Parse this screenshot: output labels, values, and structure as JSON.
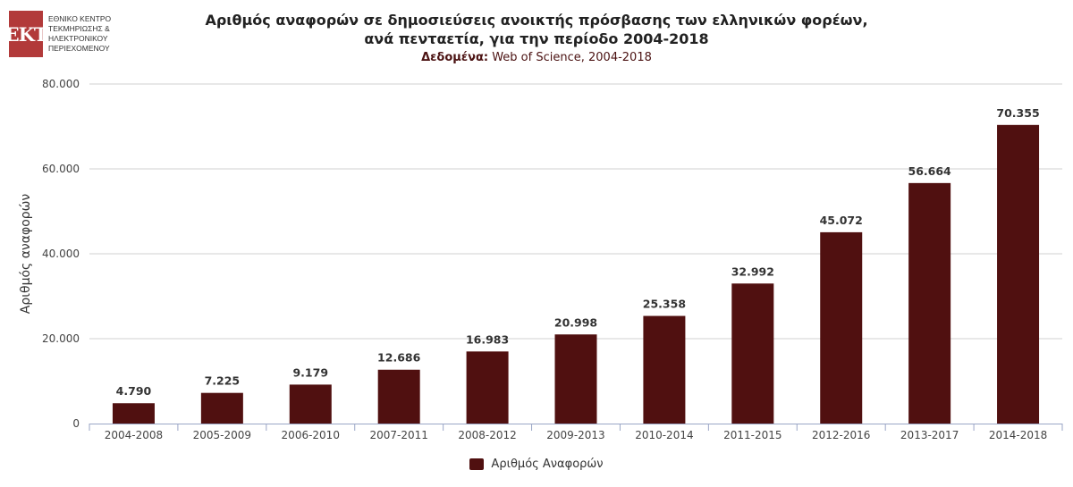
{
  "logo": {
    "mark": "EKT",
    "lines": [
      "ΕΘΝΙΚΟ ΚΕΝΤΡΟ",
      "ΤΕΚΜΗΡΙΩΣΗΣ &",
      "ΗΛΕΚΤΡΟΝΙΚΟΥ",
      "ΠΕΡΙΕΧΟΜΕΝΟΥ"
    ]
  },
  "chart_data": {
    "type": "bar",
    "title_line1": "Αριθμός αναφορών σε δημοσιεύσεις ανοικτής πρόσβασης των ελληνικών φορέων,",
    "title_line2": "ανά πενταετία, για την περίοδο 2004-2018",
    "subtitle_label": "Δεδομένα:",
    "subtitle_text": " Web of Science, 2004-2018",
    "ylabel": "Αριθμός αναφορών",
    "xlabel": "",
    "ylim": [
      0,
      80000
    ],
    "yticks": [
      0,
      20000,
      40000,
      60000,
      80000
    ],
    "ytick_labels": [
      "0",
      "20.000",
      "40.000",
      "60.000",
      "80.000"
    ],
    "categories": [
      "2004-2008",
      "2005-2009",
      "2006-2010",
      "2007-2011",
      "2008-2012",
      "2009-2013",
      "2010-2014",
      "2011-2015",
      "2012-2016",
      "2013-2017",
      "2014-2018"
    ],
    "series": [
      {
        "name": "Αριθμός Αναφορών",
        "color": "#501010",
        "values": [
          4790,
          7225,
          9179,
          12686,
          16983,
          20998,
          25358,
          32992,
          45072,
          56664,
          70355
        ],
        "labels": [
          "4.790",
          "7.225",
          "9.179",
          "12.686",
          "16.983",
          "20.998",
          "25.358",
          "32.992",
          "45.072",
          "56.664",
          "70.355"
        ]
      }
    ],
    "grid": true,
    "legend": "bottom-center"
  }
}
